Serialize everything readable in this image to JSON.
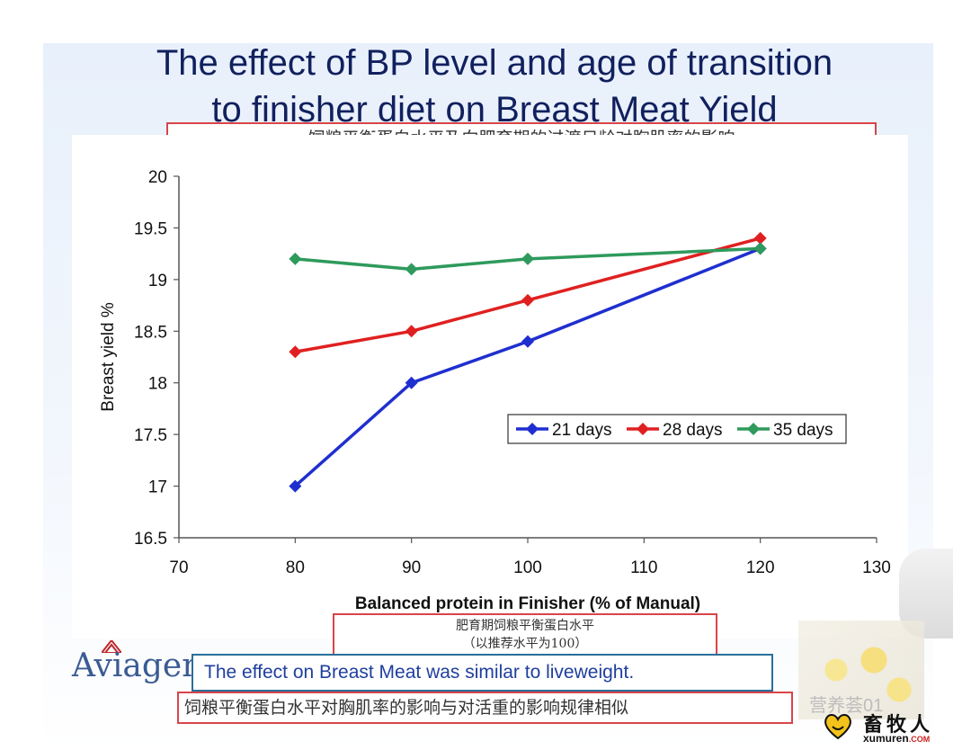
{
  "title_line1": "The effect of BP level and age of transition",
  "title_line2": "to finisher diet on Breast Meat Yield",
  "cn_title": "饲粮平衡蛋白水平及向肥育期的过渡日龄对胸肌率的影响",
  "cn_xlabel_line1": "肥育期饲粮平衡蛋白水平",
  "cn_xlabel_line2": "（以推荐水平为100）",
  "conclusion": "The effect on Breast Meat was similar to liveweight.",
  "cn_conclusion": "饲粮平衡蛋白水平对胸肌率的影响与对活重的影响规律相似",
  "logo_text": "Aviagen",
  "watermark_text": "营养荟01",
  "brand_cn": "畜牧人",
  "brand_url": "xumuren",
  "brand_url_suffix": ".COM",
  "chart_data": {
    "type": "line",
    "title": "",
    "xlabel": "Balanced protein in Finisher (% of Manual)",
    "ylabel": "Breast yield %",
    "xlim": [
      70,
      130
    ],
    "ylim": [
      16.5,
      20
    ],
    "xticks": [
      70,
      80,
      90,
      100,
      110,
      120,
      130
    ],
    "yticks": [
      16.5,
      17,
      17.5,
      18,
      18.5,
      19,
      19.5,
      20
    ],
    "x": [
      80,
      90,
      100,
      120
    ],
    "grid": false,
    "legend_position": "right",
    "series": [
      {
        "name": "21 days",
        "color": "#1f2fcf",
        "marker": "diamond",
        "values": [
          17.0,
          18.0,
          18.4,
          19.3
        ]
      },
      {
        "name": "28 days",
        "color": "#e02020",
        "marker": "diamond",
        "values": [
          18.3,
          18.5,
          18.8,
          19.4
        ]
      },
      {
        "name": "35 days",
        "color": "#2e9a5c",
        "marker": "diamond",
        "values": [
          19.2,
          19.1,
          19.2,
          19.3
        ]
      }
    ]
  }
}
